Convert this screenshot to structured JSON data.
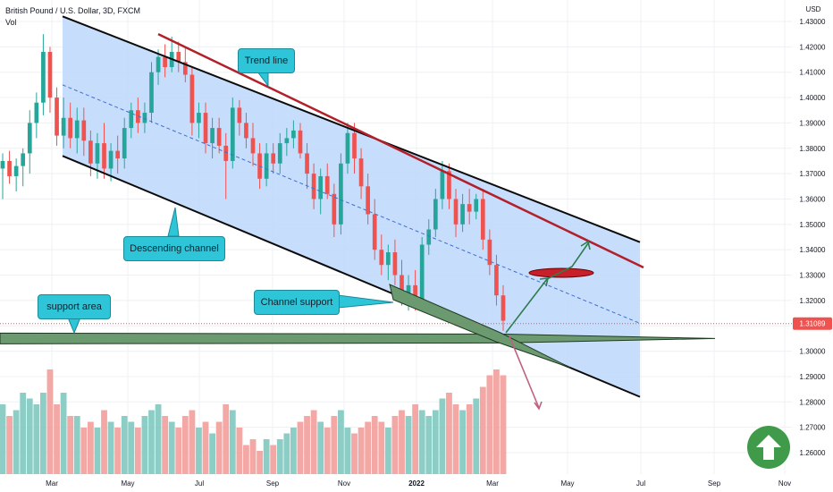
{
  "header": {
    "symbol": "British Pound / U.S. Dollar, 3D, FXCM",
    "volume_label": "Vol"
  },
  "price_axis": {
    "currency": "USD",
    "ticks": [
      "1.43000",
      "1.42000",
      "1.41000",
      "1.40000",
      "1.39000",
      "1.38000",
      "1.37000",
      "1.36000",
      "1.35000",
      "1.34000",
      "1.33000",
      "1.32000",
      "1.31000",
      "1.30000",
      "1.29000",
      "1.28000",
      "1.27000",
      "1.26000"
    ],
    "last_price": "1.31089"
  },
  "time_axis": {
    "ticks": [
      "Mar",
      "May",
      "Jul",
      "Sep",
      "Nov",
      "2022",
      "Mar",
      "May",
      "Jul",
      "Sep",
      "Nov"
    ]
  },
  "annotations": {
    "trend_line": "Trend line",
    "descending_channel": "Descending channel",
    "channel_support": "Channel support",
    "support_area": "support area"
  },
  "colors": {
    "up": "#26a69a",
    "down": "#ef5350",
    "channel_fill": "#bdd7fb",
    "trend_line": "#b2202a",
    "support": "#4a7a50",
    "callout": "#2ec5d8"
  },
  "chart_data": {
    "type": "candlestick",
    "title": "British Pound / U.S. Dollar, 3D, FXCM",
    "ylim": [
      1.255,
      1.435
    ],
    "last_price": 1.31089,
    "candles": [
      {
        "o": 1.372,
        "h": 1.378,
        "l": 1.36,
        "c": 1.375,
        "v": 0.6
      },
      {
        "o": 1.375,
        "h": 1.379,
        "l": 1.366,
        "c": 1.369,
        "v": 0.5
      },
      {
        "o": 1.369,
        "h": 1.376,
        "l": 1.363,
        "c": 1.373,
        "v": 0.55
      },
      {
        "o": 1.373,
        "h": 1.38,
        "l": 1.365,
        "c": 1.378,
        "v": 0.7
      },
      {
        "o": 1.378,
        "h": 1.395,
        "l": 1.37,
        "c": 1.39,
        "v": 0.65
      },
      {
        "o": 1.39,
        "h": 1.402,
        "l": 1.384,
        "c": 1.398,
        "v": 0.6
      },
      {
        "o": 1.398,
        "h": 1.425,
        "l": 1.393,
        "c": 1.418,
        "v": 0.7
      },
      {
        "o": 1.418,
        "h": 1.42,
        "l": 1.394,
        "c": 1.4,
        "v": 0.9
      },
      {
        "o": 1.4,
        "h": 1.404,
        "l": 1.381,
        "c": 1.385,
        "v": 0.6
      },
      {
        "o": 1.385,
        "h": 1.4,
        "l": 1.38,
        "c": 1.392,
        "v": 0.7
      },
      {
        "o": 1.392,
        "h": 1.398,
        "l": 1.38,
        "c": 1.384,
        "v": 0.5
      },
      {
        "o": 1.384,
        "h": 1.396,
        "l": 1.378,
        "c": 1.391,
        "v": 0.5
      },
      {
        "o": 1.391,
        "h": 1.396,
        "l": 1.377,
        "c": 1.383,
        "v": 0.4
      },
      {
        "o": 1.383,
        "h": 1.387,
        "l": 1.369,
        "c": 1.374,
        "v": 0.45
      },
      {
        "o": 1.374,
        "h": 1.386,
        "l": 1.368,
        "c": 1.382,
        "v": 0.4
      },
      {
        "o": 1.382,
        "h": 1.39,
        "l": 1.368,
        "c": 1.372,
        "v": 0.55
      },
      {
        "o": 1.372,
        "h": 1.382,
        "l": 1.367,
        "c": 1.379,
        "v": 0.45
      },
      {
        "o": 1.379,
        "h": 1.385,
        "l": 1.37,
        "c": 1.376,
        "v": 0.4
      },
      {
        "o": 1.376,
        "h": 1.392,
        "l": 1.372,
        "c": 1.388,
        "v": 0.5
      },
      {
        "o": 1.388,
        "h": 1.398,
        "l": 1.384,
        "c": 1.395,
        "v": 0.45
      },
      {
        "o": 1.395,
        "h": 1.4,
        "l": 1.386,
        "c": 1.39,
        "v": 0.4
      },
      {
        "o": 1.39,
        "h": 1.398,
        "l": 1.386,
        "c": 1.394,
        "v": 0.5
      },
      {
        "o": 1.394,
        "h": 1.414,
        "l": 1.39,
        "c": 1.41,
        "v": 0.55
      },
      {
        "o": 1.41,
        "h": 1.419,
        "l": 1.405,
        "c": 1.416,
        "v": 0.6
      },
      {
        "o": 1.416,
        "h": 1.421,
        "l": 1.408,
        "c": 1.412,
        "v": 0.5
      },
      {
        "o": 1.412,
        "h": 1.424,
        "l": 1.41,
        "c": 1.418,
        "v": 0.45
      },
      {
        "o": 1.418,
        "h": 1.422,
        "l": 1.41,
        "c": 1.414,
        "v": 0.4
      },
      {
        "o": 1.414,
        "h": 1.42,
        "l": 1.406,
        "c": 1.409,
        "v": 0.5
      },
      {
        "o": 1.409,
        "h": 1.412,
        "l": 1.385,
        "c": 1.39,
        "v": 0.55
      },
      {
        "o": 1.39,
        "h": 1.398,
        "l": 1.384,
        "c": 1.394,
        "v": 0.4
      },
      {
        "o": 1.394,
        "h": 1.398,
        "l": 1.378,
        "c": 1.382,
        "v": 0.45
      },
      {
        "o": 1.382,
        "h": 1.392,
        "l": 1.376,
        "c": 1.388,
        "v": 0.35
      },
      {
        "o": 1.388,
        "h": 1.392,
        "l": 1.378,
        "c": 1.381,
        "v": 0.45
      },
      {
        "o": 1.381,
        "h": 1.386,
        "l": 1.36,
        "c": 1.375,
        "v": 0.6
      },
      {
        "o": 1.375,
        "h": 1.4,
        "l": 1.372,
        "c": 1.396,
        "v": 0.55
      },
      {
        "o": 1.396,
        "h": 1.399,
        "l": 1.385,
        "c": 1.39,
        "v": 0.4
      },
      {
        "o": 1.39,
        "h": 1.394,
        "l": 1.38,
        "c": 1.384,
        "v": 0.25
      },
      {
        "o": 1.384,
        "h": 1.39,
        "l": 1.373,
        "c": 1.378,
        "v": 0.3
      },
      {
        "o": 1.378,
        "h": 1.382,
        "l": 1.364,
        "c": 1.368,
        "v": 0.2
      },
      {
        "o": 1.368,
        "h": 1.382,
        "l": 1.365,
        "c": 1.378,
        "v": 0.3
      },
      {
        "o": 1.378,
        "h": 1.382,
        "l": 1.37,
        "c": 1.374,
        "v": 0.25
      },
      {
        "o": 1.374,
        "h": 1.386,
        "l": 1.37,
        "c": 1.382,
        "v": 0.3
      },
      {
        "o": 1.382,
        "h": 1.388,
        "l": 1.377,
        "c": 1.384,
        "v": 0.35
      },
      {
        "o": 1.384,
        "h": 1.391,
        "l": 1.38,
        "c": 1.387,
        "v": 0.4
      },
      {
        "o": 1.387,
        "h": 1.39,
        "l": 1.376,
        "c": 1.378,
        "v": 0.45
      },
      {
        "o": 1.378,
        "h": 1.382,
        "l": 1.364,
        "c": 1.37,
        "v": 0.5
      },
      {
        "o": 1.37,
        "h": 1.374,
        "l": 1.356,
        "c": 1.36,
        "v": 0.55
      },
      {
        "o": 1.36,
        "h": 1.372,
        "l": 1.354,
        "c": 1.369,
        "v": 0.45
      },
      {
        "o": 1.369,
        "h": 1.374,
        "l": 1.36,
        "c": 1.362,
        "v": 0.4
      },
      {
        "o": 1.362,
        "h": 1.366,
        "l": 1.345,
        "c": 1.35,
        "v": 0.5
      },
      {
        "o": 1.35,
        "h": 1.378,
        "l": 1.346,
        "c": 1.374,
        "v": 0.55
      },
      {
        "o": 1.374,
        "h": 1.39,
        "l": 1.37,
        "c": 1.386,
        "v": 0.4
      },
      {
        "o": 1.386,
        "h": 1.39,
        "l": 1.37,
        "c": 1.376,
        "v": 0.35
      },
      {
        "o": 1.376,
        "h": 1.38,
        "l": 1.36,
        "c": 1.365,
        "v": 0.4
      },
      {
        "o": 1.365,
        "h": 1.37,
        "l": 1.35,
        "c": 1.354,
        "v": 0.45
      },
      {
        "o": 1.354,
        "h": 1.36,
        "l": 1.336,
        "c": 1.34,
        "v": 0.5
      },
      {
        "o": 1.34,
        "h": 1.346,
        "l": 1.33,
        "c": 1.334,
        "v": 0.45
      },
      {
        "o": 1.334,
        "h": 1.342,
        "l": 1.328,
        "c": 1.339,
        "v": 0.4
      },
      {
        "o": 1.339,
        "h": 1.344,
        "l": 1.326,
        "c": 1.33,
        "v": 0.5
      },
      {
        "o": 1.33,
        "h": 1.336,
        "l": 1.318,
        "c": 1.322,
        "v": 0.55
      },
      {
        "o": 1.322,
        "h": 1.33,
        "l": 1.316,
        "c": 1.326,
        "v": 0.5
      },
      {
        "o": 1.326,
        "h": 1.332,
        "l": 1.316,
        "c": 1.32,
        "v": 0.6
      },
      {
        "o": 1.32,
        "h": 1.345,
        "l": 1.318,
        "c": 1.342,
        "v": 0.55
      },
      {
        "o": 1.342,
        "h": 1.352,
        "l": 1.338,
        "c": 1.348,
        "v": 0.5
      },
      {
        "o": 1.348,
        "h": 1.364,
        "l": 1.345,
        "c": 1.36,
        "v": 0.55
      },
      {
        "o": 1.36,
        "h": 1.375,
        "l": 1.356,
        "c": 1.371,
        "v": 0.65
      },
      {
        "o": 1.371,
        "h": 1.374,
        "l": 1.356,
        "c": 1.36,
        "v": 0.7
      },
      {
        "o": 1.36,
        "h": 1.364,
        "l": 1.345,
        "c": 1.35,
        "v": 0.6
      },
      {
        "o": 1.35,
        "h": 1.362,
        "l": 1.347,
        "c": 1.358,
        "v": 0.55
      },
      {
        "o": 1.358,
        "h": 1.364,
        "l": 1.35,
        "c": 1.355,
        "v": 0.6
      },
      {
        "o": 1.355,
        "h": 1.362,
        "l": 1.352,
        "c": 1.36,
        "v": 0.65
      },
      {
        "o": 1.36,
        "h": 1.364,
        "l": 1.34,
        "c": 1.344,
        "v": 0.75
      },
      {
        "o": 1.344,
        "h": 1.348,
        "l": 1.33,
        "c": 1.334,
        "v": 0.85
      },
      {
        "o": 1.334,
        "h": 1.338,
        "l": 1.318,
        "c": 1.322,
        "v": 0.9
      },
      {
        "o": 1.322,
        "h": 1.326,
        "l": 1.308,
        "c": 1.312,
        "v": 0.85
      }
    ],
    "channel": {
      "upper_start": 1.432,
      "upper_end": 1.343,
      "lower_start": 1.377,
      "lower_end": 1.282,
      "mid_start": 1.405,
      "mid_end": 1.311
    },
    "trend_line": {
      "start": 1.425,
      "end": 1.333
    },
    "support_area": 1.305
  }
}
